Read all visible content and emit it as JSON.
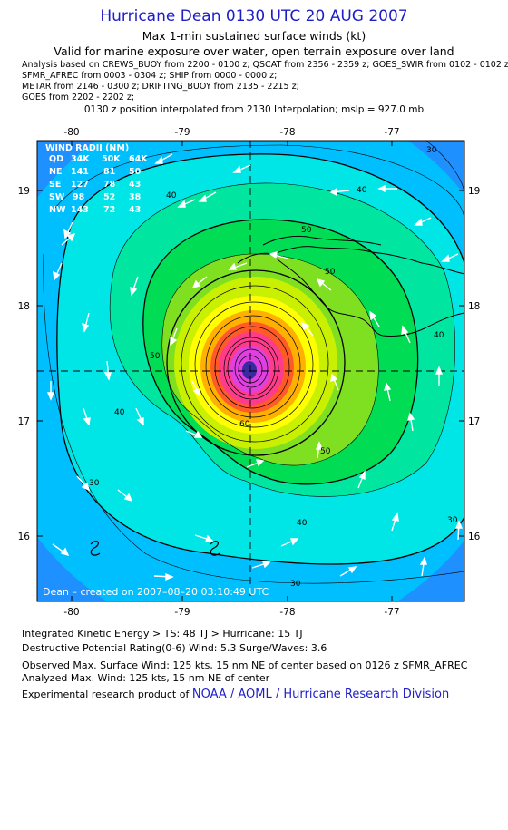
{
  "header": {
    "title": "Hurricane Dean 0130 UTC 20 AUG 2007",
    "subtitle": "Max 1-min sustained surface winds (kt)",
    "valid": "Valid for marine exposure over water, open terrain exposure over land"
  },
  "analysis_lines": [
    "Analysis based on  CREWS_BUOY from 2200 - 0100 z;  QSCAT from 2356 - 2359 z;  GOES_SWIR from 0102 - 0102 z;",
    "SFMR_AFREC from 0003 - 0304 z;  SHIP from 0000 - 0000 z;",
    "METAR from 2146 - 0300 z;  DRIFTING_BUOY from 2135 - 2215 z;",
    "GOES from 2202 - 2202 z;"
  ],
  "position_note": "0130 z position interpolated from 2130 Interpolation; mslp = 927.0 mb",
  "map": {
    "lon_ticks": [
      "-80",
      "-79",
      "-78",
      "-77"
    ],
    "lat_ticks": [
      "19",
      "18",
      "17",
      "16"
    ],
    "contour_labels": [
      "30",
      "40",
      "50",
      "50",
      "60",
      "30",
      "40",
      "40",
      "30",
      "30",
      "40",
      "50",
      "40",
      "50"
    ],
    "credit": "Dean  –  created on 2007–08–20 03:10:49 UTC",
    "wind_radii": {
      "title": "WIND RADII (NM)",
      "header": [
        "QD",
        "34K",
        "50K",
        "64K"
      ],
      "rows": [
        [
          "NE",
          "141",
          "81",
          "50"
        ],
        [
          "SE",
          "127",
          "78",
          "43"
        ],
        [
          "SW",
          "98",
          "52",
          "38"
        ],
        [
          "NW",
          "143",
          "72",
          "43"
        ]
      ]
    },
    "colors": {
      "c20": "#1e90ff",
      "c30": "#00bfff",
      "c40": "#00e5e5",
      "c50": "#00e6a0",
      "c60": "#00dd55",
      "c70": "#7ee020",
      "c80": "#c8f000",
      "c90": "#ffff00",
      "c100": "#ffb000",
      "c110": "#ff5a28",
      "c120": "#ff3c8c",
      "c125": "#e040e0"
    }
  },
  "footer": {
    "ike": "Integrated Kinetic Energy > TS: 48 TJ   > Hurricane: 15 TJ",
    "dpr": "Destructive Potential Rating(0-6)   Wind: 5.3 Surge/Waves: 3.6",
    "obs": "Observed Max. Surface Wind: 125 kts, 15 nm NE of center based on 0126 z SFMR_AFREC",
    "analyzed": "Analyzed Max. Wind: 125 kts, 15 nm NE of center",
    "credit_prefix": "Experimental research product of",
    "credit_link": "NOAA / AOML / Hurricane Research Division"
  }
}
